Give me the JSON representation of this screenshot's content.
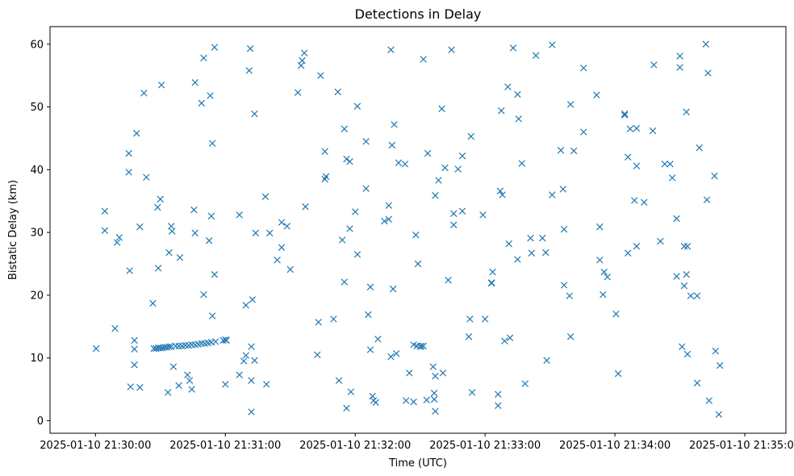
{
  "chart_data": {
    "type": "scatter",
    "title": "Detections in Delay",
    "xlabel": "Time (UTC)",
    "ylabel": "Bistatic Delay (km)",
    "x_unit": "seconds since 2025-01-10 21:30:00",
    "xlim": [
      -21,
      319
    ],
    "ylim": [
      -2,
      62.8
    ],
    "x_ticks": [
      {
        "value": 0,
        "label": "2025-01-10 21:30:00"
      },
      {
        "value": 60,
        "label": "2025-01-10 21:31:00"
      },
      {
        "value": 120,
        "label": "2025-01-10 21:32:00"
      },
      {
        "value": 180,
        "label": "2025-01-10 21:33:00"
      },
      {
        "value": 240,
        "label": "2025-01-10 21:34:00"
      },
      {
        "value": 300,
        "label": "2025-01-10 21:35:00"
      }
    ],
    "y_ticks": [
      0,
      10,
      20,
      30,
      40,
      50,
      60
    ],
    "grid": false,
    "marker": "x",
    "color": "#1f77b4",
    "series": [
      {
        "name": "",
        "points": [
          [
            0.3,
            11.5
          ],
          [
            4.3,
            33.4
          ],
          [
            4.3,
            30.3
          ],
          [
            9.0,
            14.7
          ],
          [
            10.0,
            28.4
          ],
          [
            11.0,
            29.2
          ],
          [
            15.4,
            42.6
          ],
          [
            15.4,
            39.6
          ],
          [
            15.8,
            23.9
          ],
          [
            16.2,
            5.4
          ],
          [
            18.0,
            12.8
          ],
          [
            18.0,
            11.4
          ],
          [
            18.0,
            8.9
          ],
          [
            19.0,
            45.8
          ],
          [
            20.5,
            30.9
          ],
          [
            20.5,
            5.3
          ],
          [
            22.4,
            52.2
          ],
          [
            23.5,
            38.8
          ],
          [
            26.5,
            18.7
          ],
          [
            28.7,
            34.0
          ],
          [
            29.0,
            24.3
          ],
          [
            30.0,
            35.3
          ],
          [
            30.5,
            53.5
          ],
          [
            33.5,
            4.5
          ],
          [
            34.0,
            26.8
          ],
          [
            35.0,
            31.0
          ],
          [
            35.4,
            30.2
          ],
          [
            36.0,
            8.6
          ],
          [
            38.5,
            5.6
          ],
          [
            39.0,
            26.0
          ],
          [
            42.5,
            7.3
          ],
          [
            43.5,
            6.4
          ],
          [
            44.5,
            5.0
          ],
          [
            45.5,
            33.6
          ],
          [
            46.0,
            29.9
          ],
          [
            46.0,
            53.9
          ],
          [
            49.0,
            50.6
          ],
          [
            50.0,
            57.8
          ],
          [
            50.0,
            20.1
          ],
          [
            52.5,
            28.7
          ],
          [
            53.0,
            51.8
          ],
          [
            53.5,
            32.6
          ],
          [
            54.0,
            16.7
          ],
          [
            54.0,
            44.2
          ],
          [
            55.0,
            23.3
          ],
          [
            55.0,
            59.5
          ],
          [
            60.0,
            5.8
          ],
          [
            60.5,
            12.8
          ],
          [
            66.5,
            7.3
          ],
          [
            66.5,
            32.8
          ],
          [
            68.5,
            9.5
          ],
          [
            69.5,
            18.4
          ],
          [
            69.5,
            10.4
          ],
          [
            71.0,
            55.8
          ],
          [
            71.5,
            59.3
          ],
          [
            72.0,
            1.4
          ],
          [
            72.0,
            6.4
          ],
          [
            72.0,
            11.8
          ],
          [
            72.5,
            19.3
          ],
          [
            73.5,
            48.9
          ],
          [
            73.5,
            9.6
          ],
          [
            74.0,
            29.9
          ],
          [
            78.5,
            35.7
          ],
          [
            79.0,
            5.8
          ],
          [
            80.5,
            29.9
          ],
          [
            84.0,
            25.6
          ],
          [
            86.0,
            31.6
          ],
          [
            86.0,
            27.6
          ],
          [
            88.5,
            31.0
          ],
          [
            90.0,
            24.1
          ],
          [
            93.5,
            52.3
          ],
          [
            95.0,
            56.6
          ],
          [
            95.5,
            57.4
          ],
          [
            96.5,
            58.6
          ],
          [
            97.0,
            34.1
          ],
          [
            102.5,
            10.5
          ],
          [
            103.0,
            15.7
          ],
          [
            104.0,
            55.0
          ],
          [
            106.0,
            42.9
          ],
          [
            106.0,
            38.5
          ],
          [
            106.5,
            38.9
          ],
          [
            110.0,
            16.2
          ],
          [
            112.0,
            52.4
          ],
          [
            112.5,
            6.4
          ],
          [
            114.0,
            28.8
          ],
          [
            115.0,
            46.5
          ],
          [
            115.0,
            22.1
          ],
          [
            116.0,
            2.0
          ],
          [
            116.0,
            41.7
          ],
          [
            117.5,
            30.6
          ],
          [
            117.5,
            41.3
          ],
          [
            118.0,
            4.6
          ],
          [
            120.0,
            33.3
          ],
          [
            121.0,
            26.5
          ],
          [
            121.0,
            50.1
          ],
          [
            125.0,
            44.5
          ],
          [
            125.0,
            37.0
          ],
          [
            126.0,
            16.9
          ],
          [
            127.0,
            21.3
          ],
          [
            127.0,
            11.3
          ],
          [
            128.0,
            3.9
          ],
          [
            128.5,
            3.2
          ],
          [
            129.5,
            2.9
          ],
          [
            130.5,
            13.0
          ],
          [
            133.5,
            31.8
          ],
          [
            135.5,
            34.3
          ],
          [
            135.5,
            32.1
          ],
          [
            136.5,
            10.2
          ],
          [
            136.5,
            59.1
          ],
          [
            137.0,
            43.9
          ],
          [
            137.5,
            21.0
          ],
          [
            138.0,
            47.2
          ],
          [
            139.0,
            10.7
          ],
          [
            140.0,
            41.1
          ],
          [
            143.0,
            40.9
          ],
          [
            143.5,
            3.2
          ],
          [
            145.0,
            7.6
          ],
          [
            147.0,
            12.1
          ],
          [
            147.0,
            3.0
          ],
          [
            148.0,
            29.6
          ],
          [
            148.5,
            11.9
          ],
          [
            149.0,
            25.0
          ],
          [
            150.0,
            11.8
          ],
          [
            150.5,
            11.9
          ],
          [
            151.5,
            11.9
          ],
          [
            151.5,
            57.6
          ],
          [
            153.0,
            3.3
          ],
          [
            153.5,
            42.6
          ],
          [
            156.0,
            8.6
          ],
          [
            156.5,
            4.4
          ],
          [
            156.5,
            3.4
          ],
          [
            157.0,
            35.9
          ],
          [
            157.0,
            1.5
          ],
          [
            157.0,
            7.1
          ],
          [
            158.5,
            38.3
          ],
          [
            160.0,
            49.7
          ],
          [
            160.5,
            7.6
          ],
          [
            161.5,
            40.3
          ],
          [
            163.0,
            22.4
          ],
          [
            164.5,
            59.1
          ],
          [
            165.5,
            33.0
          ],
          [
            165.5,
            31.2
          ],
          [
            167.5,
            40.1
          ],
          [
            169.5,
            42.2
          ],
          [
            169.5,
            33.4
          ],
          [
            172.5,
            13.4
          ],
          [
            173.0,
            16.2
          ],
          [
            173.5,
            45.3
          ],
          [
            174.0,
            4.5
          ],
          [
            179.0,
            32.8
          ],
          [
            180.0,
            16.2
          ],
          [
            183.0,
            21.9
          ],
          [
            183.0,
            22.0
          ],
          [
            183.5,
            23.7
          ],
          [
            186.0,
            4.2
          ],
          [
            186.0,
            2.4
          ],
          [
            187.0,
            36.6
          ],
          [
            187.5,
            49.4
          ],
          [
            188.0,
            36.0
          ],
          [
            189.0,
            12.7
          ],
          [
            190.5,
            53.2
          ],
          [
            191.0,
            28.2
          ],
          [
            191.5,
            13.2
          ],
          [
            193.0,
            59.4
          ],
          [
            195.0,
            25.7
          ],
          [
            195.0,
            52.0
          ],
          [
            195.5,
            48.1
          ],
          [
            197.0,
            41.0
          ],
          [
            198.5,
            5.9
          ],
          [
            201.0,
            29.1
          ],
          [
            201.5,
            26.7
          ],
          [
            203.5,
            58.2
          ],
          [
            206.5,
            29.1
          ],
          [
            208.0,
            26.8
          ],
          [
            208.5,
            9.6
          ],
          [
            211.0,
            36.0
          ],
          [
            211.0,
            59.9
          ],
          [
            215.0,
            43.1
          ],
          [
            216.0,
            36.9
          ],
          [
            216.5,
            30.5
          ],
          [
            216.5,
            21.6
          ],
          [
            219.0,
            19.9
          ],
          [
            219.5,
            50.4
          ],
          [
            219.5,
            13.4
          ],
          [
            221.0,
            43.0
          ],
          [
            225.5,
            56.2
          ],
          [
            225.5,
            46.0
          ],
          [
            231.5,
            51.9
          ],
          [
            233.0,
            25.6
          ],
          [
            233.0,
            30.9
          ],
          [
            234.5,
            20.1
          ],
          [
            235.0,
            23.7
          ],
          [
            236.5,
            22.9
          ],
          [
            240.5,
            17.0
          ],
          [
            241.5,
            7.5
          ],
          [
            244.5,
            48.7
          ],
          [
            244.5,
            48.9
          ],
          [
            246.0,
            42.0
          ],
          [
            246.0,
            26.7
          ],
          [
            247.0,
            46.5
          ],
          [
            249.0,
            35.1
          ],
          [
            250.0,
            46.6
          ],
          [
            250.0,
            40.6
          ],
          [
            250.0,
            27.8
          ],
          [
            253.5,
            34.8
          ],
          [
            257.5,
            46.2
          ],
          [
            258.0,
            56.7
          ],
          [
            261.0,
            28.6
          ],
          [
            263.0,
            40.9
          ],
          [
            265.5,
            40.9
          ],
          [
            266.5,
            38.7
          ],
          [
            268.5,
            32.2
          ],
          [
            268.5,
            23.0
          ],
          [
            270.0,
            58.1
          ],
          [
            270.0,
            56.3
          ],
          [
            271.0,
            11.8
          ],
          [
            272.0,
            21.5
          ],
          [
            272.0,
            27.8
          ],
          [
            273.0,
            49.2
          ],
          [
            273.0,
            23.3
          ],
          [
            273.5,
            10.6
          ],
          [
            273.5,
            27.8
          ],
          [
            275.0,
            19.9
          ],
          [
            278.0,
            19.9
          ],
          [
            278.0,
            6.0
          ],
          [
            279.0,
            43.5
          ],
          [
            282.0,
            60.0
          ],
          [
            282.5,
            35.2
          ],
          [
            283.0,
            55.4
          ],
          [
            283.5,
            3.2
          ],
          [
            286.0,
            39.0
          ],
          [
            286.5,
            11.1
          ],
          [
            288.0,
            1.0
          ],
          [
            288.5,
            8.8
          ],
          [
            27.0,
            11.5
          ],
          [
            28.0,
            11.5
          ],
          [
            29.0,
            11.6
          ],
          [
            30.0,
            11.6
          ],
          [
            31.0,
            11.6
          ],
          [
            32.0,
            11.7
          ],
          [
            33.0,
            11.7
          ],
          [
            34.0,
            11.8
          ],
          [
            35.0,
            11.8
          ],
          [
            37.0,
            11.9
          ],
          [
            38.5,
            11.9
          ],
          [
            40.0,
            11.9
          ],
          [
            41.5,
            12.0
          ],
          [
            43.0,
            12.0
          ],
          [
            44.5,
            12.1
          ],
          [
            46.0,
            12.1
          ],
          [
            47.5,
            12.2
          ],
          [
            49.0,
            12.3
          ],
          [
            50.5,
            12.3
          ],
          [
            52.0,
            12.4
          ],
          [
            53.5,
            12.5
          ],
          [
            55.5,
            12.6
          ],
          [
            59.0,
            12.8
          ],
          [
            60.0,
            12.9
          ]
        ]
      }
    ]
  }
}
